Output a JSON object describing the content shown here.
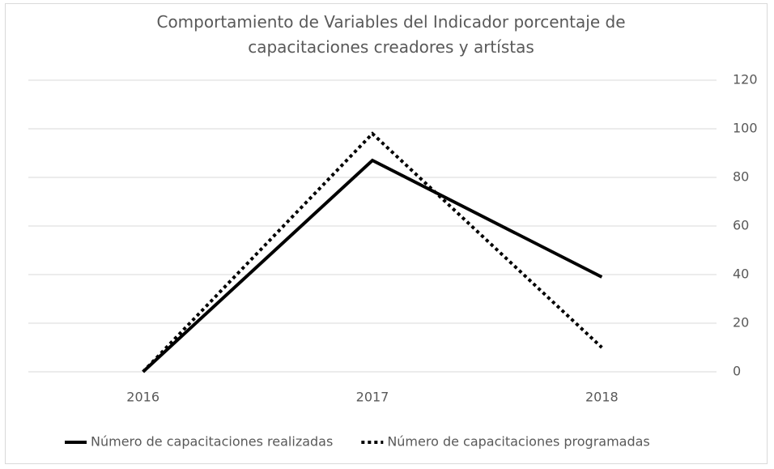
{
  "chart_data": {
    "type": "line",
    "title": "Comportamiento de Variables del Indicador porcentaje de capacitaciones creadores y artístas",
    "categories": [
      "2016",
      "2017",
      "2018"
    ],
    "series": [
      {
        "name": "Número de capacitaciones realizadas",
        "color": "#000000",
        "dash": "solid",
        "values": [
          0,
          87,
          39
        ]
      },
      {
        "name": "Número de capacitaciones programadas",
        "color": "#000000",
        "dash": "dotted",
        "values": [
          0,
          98,
          10
        ]
      }
    ],
    "ylim": [
      0,
      120
    ],
    "yticks": [
      0,
      20,
      40,
      60,
      80,
      100,
      120
    ],
    "grid": true,
    "y_axis_side": "right",
    "legend": "bottom"
  }
}
